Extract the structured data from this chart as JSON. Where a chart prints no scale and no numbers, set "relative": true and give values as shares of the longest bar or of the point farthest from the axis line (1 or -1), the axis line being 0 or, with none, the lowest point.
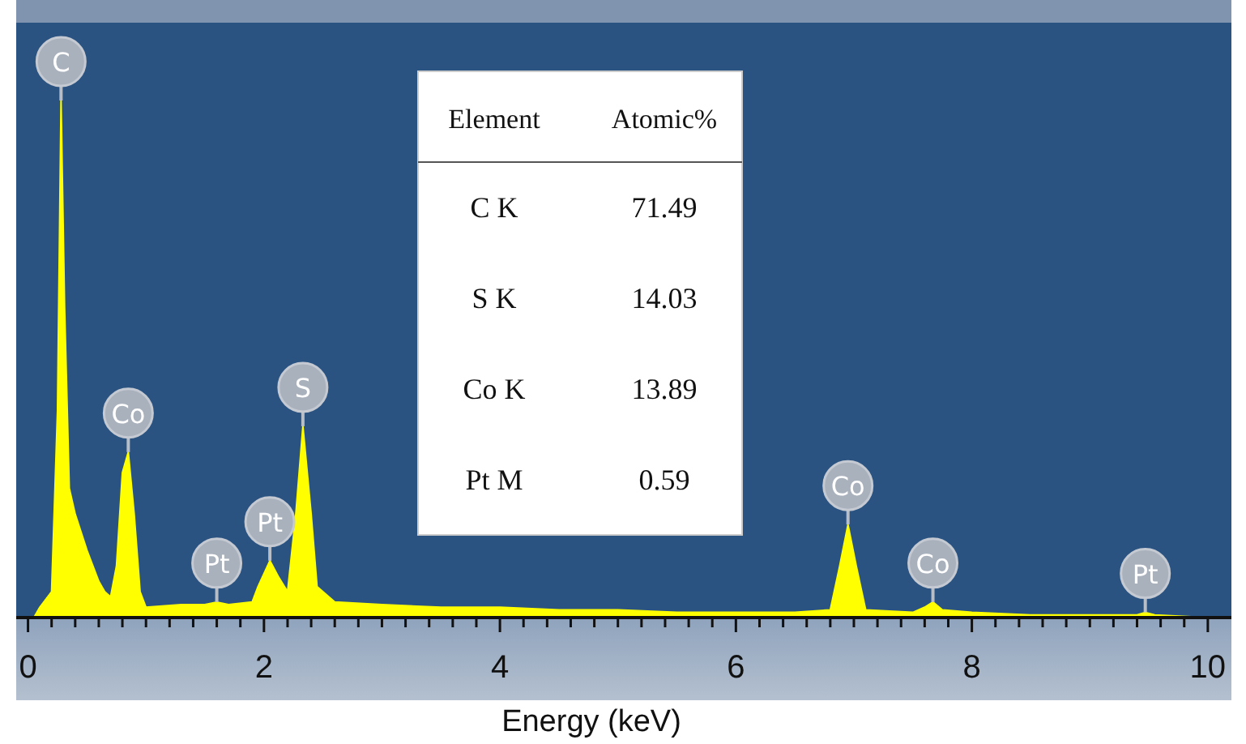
{
  "chart_data": {
    "type": "area",
    "xlabel": "Energy (keV)",
    "relative": true,
    "color": "#ffff00",
    "x": [
      0.05,
      0.1,
      0.2,
      0.25,
      0.28,
      0.31,
      0.35,
      0.4,
      0.5,
      0.6,
      0.65,
      0.7,
      0.75,
      0.8,
      0.85,
      0.9,
      0.95,
      1.0,
      1.3,
      1.5,
      1.6,
      1.7,
      1.9,
      1.95,
      2.05,
      2.12,
      2.2,
      2.27,
      2.33,
      2.4,
      2.45,
      2.6,
      3.0,
      3.5,
      4.0,
      4.5,
      5.0,
      5.5,
      6.0,
      6.5,
      6.8,
      6.88,
      6.95,
      7.02,
      7.1,
      7.5,
      7.6,
      7.67,
      7.75,
      8.0,
      8.5,
      9.0,
      9.4,
      9.47,
      9.55,
      10.0
    ],
    "values": [
      0,
      0.02,
      0.05,
      0.4,
      1,
      0.6,
      0.25,
      0.2,
      0.13,
      0.07,
      0.05,
      0.04,
      0.1,
      0.28,
      0.32,
      0.2,
      0.05,
      0.02,
      0.025,
      0.025,
      0.03,
      0.025,
      0.03,
      0.06,
      0.11,
      0.08,
      0.05,
      0.2,
      0.37,
      0.2,
      0.06,
      0.03,
      0.025,
      0.02,
      0.02,
      0.015,
      0.015,
      0.01,
      0.01,
      0.01,
      0.015,
      0.1,
      0.18,
      0.1,
      0.015,
      0.01,
      0.02,
      0.03,
      0.015,
      0.01,
      0.005,
      0.005,
      0.005,
      0.01,
      0.005,
      0
    ],
    "xlim": [
      -0.1,
      10.2
    ],
    "xticks": [
      0,
      {
        "value": 0.2,
        "label": null
      },
      {
        "value": 0.4,
        "label": null
      },
      {
        "value": 0.6,
        "label": null
      },
      {
        "value": 0.8,
        "label": null
      },
      {
        "value": 1,
        "label": null
      },
      {
        "value": 1.2,
        "label": null
      },
      {
        "value": 1.4,
        "label": null
      },
      {
        "value": 1.6,
        "label": null
      },
      {
        "value": 1.8,
        "label": null
      },
      2,
      {
        "value": 2.2,
        "label": null
      },
      {
        "value": 2.4,
        "label": null
      },
      {
        "value": 2.6,
        "label": null
      },
      {
        "value": 2.8,
        "label": null
      },
      {
        "value": 3,
        "label": null
      },
      {
        "value": 3.2,
        "label": null
      },
      {
        "value": 3.4,
        "label": null
      },
      {
        "value": 3.6,
        "label": null
      },
      {
        "value": 3.8,
        "label": null
      },
      4,
      {
        "value": 4.2,
        "label": null
      },
      {
        "value": 4.4,
        "label": null
      },
      {
        "value": 4.6,
        "label": null
      },
      {
        "value": 4.8,
        "label": null
      },
      {
        "value": 5,
        "label": null
      },
      {
        "value": 5.2,
        "label": null
      },
      {
        "value": 5.4,
        "label": null
      },
      {
        "value": 5.6,
        "label": null
      },
      {
        "value": 5.8,
        "label": null
      },
      6,
      {
        "value": 6.2,
        "label": null
      },
      {
        "value": 6.4,
        "label": null
      },
      {
        "value": 6.6,
        "label": null
      },
      {
        "value": 6.8,
        "label": null
      },
      {
        "value": 7,
        "label": null
      },
      {
        "value": 7.2,
        "label": null
      },
      {
        "value": 7.4,
        "label": null
      },
      {
        "value": 7.6,
        "label": null
      },
      {
        "value": 7.8,
        "label": null
      },
      8,
      {
        "value": 8.2,
        "label": null
      },
      {
        "value": 8.4,
        "label": null
      },
      {
        "value": 8.6,
        "label": null
      },
      {
        "value": 8.8,
        "label": null
      },
      {
        "value": 9,
        "label": null
      },
      {
        "value": 9.2,
        "label": null
      },
      {
        "value": 9.4,
        "label": null
      },
      {
        "value": 9.6,
        "label": null
      },
      {
        "value": 9.8,
        "label": null
      },
      10
    ],
    "annotations": [
      {
        "text": "C",
        "x": 0.28,
        "y": 1
      },
      {
        "text": "Co",
        "x": 0.85,
        "y": 0.32
      },
      {
        "text": "Pt",
        "x": 1.6,
        "y": 0.03
      },
      {
        "text": "Pt",
        "x": 2.05,
        "y": 0.11
      },
      {
        "text": "S",
        "x": 2.33,
        "y": 0.37
      },
      {
        "text": "Co",
        "x": 6.95,
        "y": 0.18
      },
      {
        "text": "Co",
        "x": 7.67,
        "y": 0.03
      },
      {
        "text": "Pt",
        "x": 9.47,
        "y": 0.01
      },
      "Element",
      "Atomic%",
      "C K",
      "71.49",
      "S K",
      "14.03",
      "Co K",
      "13.89",
      "Pt M",
      "0.59"
    ]
  }
}
